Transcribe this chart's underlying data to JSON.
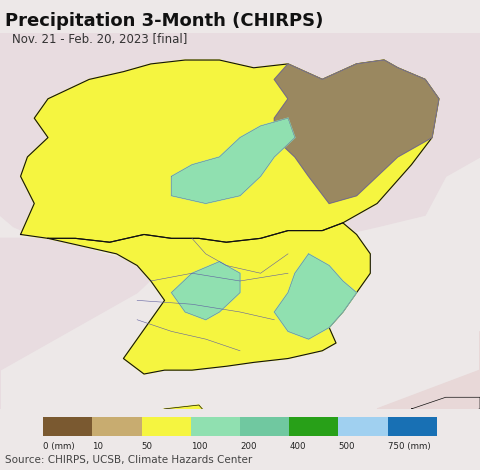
{
  "title": "Precipitation 3-Month (CHIRPS)",
  "subtitle": "Nov. 21 - Feb. 20, 2023 [final]",
  "source_text": "Source: CHIRPS, UCSB, Climate Hazards Center",
  "background_color": "#ede8e8",
  "ocean_color": "#b8ecf8",
  "land_outside_color": "#e8dce0",
  "japan_color": "#e8d8d8",
  "legend_labels": [
    "0 (mm)",
    "10",
    "50",
    "100",
    "200",
    "400",
    "500",
    "750 (mm)"
  ],
  "legend_colors": [
    "#7a5930",
    "#c8ac70",
    "#f5f540",
    "#90e0b0",
    "#70c8a0",
    "#28a018",
    "#a0d0f0",
    "#1870b4"
  ],
  "title_fontsize": 13,
  "subtitle_fontsize": 8.5,
  "source_fontsize": 7.5,
  "figsize": [
    4.8,
    4.7
  ],
  "dpi": 100,
  "extent": [
    124.0,
    131.0,
    33.5,
    43.2
  ],
  "nk_main_color": "#f5f540",
  "nk_brown_color": "#9a8860",
  "sk_main_color": "#f5f540",
  "sk_green_color": "#90e0b0",
  "border_color": "#111111",
  "province_border_color": "#6060a0"
}
